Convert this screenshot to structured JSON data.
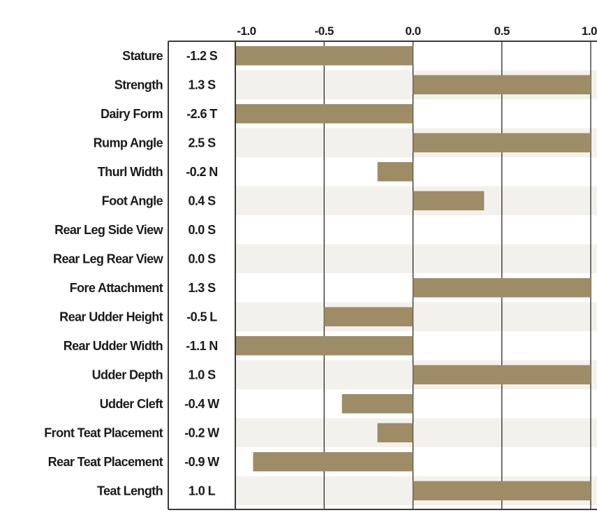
{
  "chart_data": {
    "type": "bar",
    "orientation": "horizontal",
    "title": "",
    "xlabel": "",
    "ylabel": "",
    "xlim": [
      -1.0,
      1.0
    ],
    "x_ticks": [
      {
        "value": -1.0,
        "label": "-1.0"
      },
      {
        "value": -0.5,
        "label": "-0.5"
      },
      {
        "value": 0.0,
        "label": "0.0"
      },
      {
        "value": 0.5,
        "label": "0.5"
      },
      {
        "value": 1.0,
        "label": "1.0"
      }
    ],
    "grid": true,
    "bar_color": "#9d8c65",
    "stripe_color": "#f3f1ec",
    "frame_color": "#3a3a3a",
    "rows": [
      {
        "trait": "Stature",
        "score": "-1.2 S",
        "value": -1.0
      },
      {
        "trait": "Strength",
        "score": "1.3 S",
        "value": 1.0
      },
      {
        "trait": "Dairy Form",
        "score": "-2.6 T",
        "value": -1.0
      },
      {
        "trait": "Rump Angle",
        "score": "2.5 S",
        "value": 1.0
      },
      {
        "trait": "Thurl Width",
        "score": "-0.2 N",
        "value": -0.2
      },
      {
        "trait": "Foot Angle",
        "score": "0.4 S",
        "value": 0.4
      },
      {
        "trait": "Rear Leg Side View",
        "score": "0.0 S",
        "value": 0.0
      },
      {
        "trait": "Rear Leg Rear View",
        "score": "0.0 S",
        "value": 0.0
      },
      {
        "trait": "Fore Attachment",
        "score": "1.3 S",
        "value": 1.0
      },
      {
        "trait": "Rear Udder Height",
        "score": "-0.5 L",
        "value": -0.5
      },
      {
        "trait": "Rear Udder Width",
        "score": "-1.1 N",
        "value": -1.0
      },
      {
        "trait": "Udder Depth",
        "score": "1.0 S",
        "value": 1.0
      },
      {
        "trait": "Udder Cleft",
        "score": "-0.4 W",
        "value": -0.4
      },
      {
        "trait": "Front Teat Placement",
        "score": "-0.2 W",
        "value": -0.2
      },
      {
        "trait": "Rear Teat Placement",
        "score": "-0.9 W",
        "value": -0.9
      },
      {
        "trait": "Teat Length",
        "score": "1.0 L",
        "value": 1.0
      }
    ]
  }
}
